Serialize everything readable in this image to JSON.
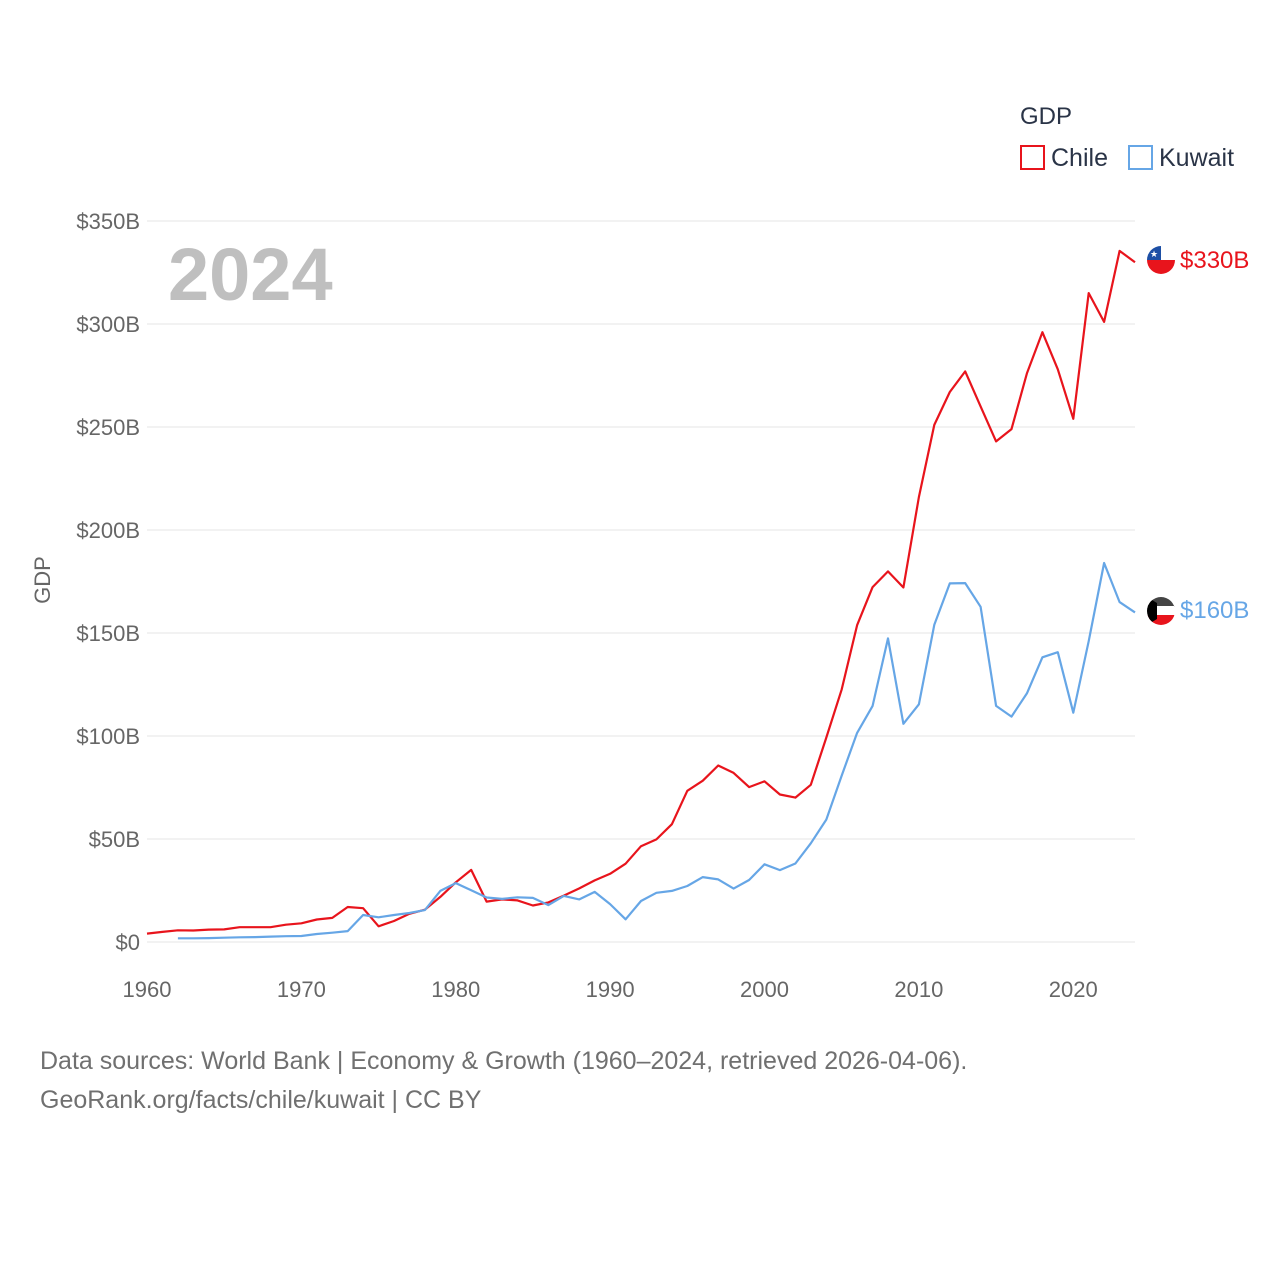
{
  "chart_data": {
    "type": "line",
    "watermark_year": "2024",
    "ylabel": "GDP",
    "xlabel": "",
    "xlim": [
      1960,
      2024
    ],
    "ylim": [
      0,
      350
    ],
    "x_ticks": [
      1960,
      1970,
      1980,
      1990,
      2000,
      2010,
      2020
    ],
    "y_ticks": [
      {
        "value": 0,
        "label": "$0"
      },
      {
        "value": 50,
        "label": "$50B"
      },
      {
        "value": 100,
        "label": "$100B"
      },
      {
        "value": 150,
        "label": "$150B"
      },
      {
        "value": 200,
        "label": "$200B"
      },
      {
        "value": 250,
        "label": "$250B"
      },
      {
        "value": 300,
        "label": "$300B"
      },
      {
        "value": 350,
        "label": "$350B"
      }
    ],
    "grid": true,
    "legend": {
      "title": "GDP",
      "position": "top-right"
    },
    "units": "billions USD",
    "series": [
      {
        "name": "Chile",
        "color": "#e8141c",
        "end_label": "$330B",
        "flag_icon": "chile-flag-icon",
        "x": [
          1960,
          1961,
          1962,
          1963,
          1964,
          1965,
          1966,
          1967,
          1968,
          1969,
          1970,
          1971,
          1972,
          1973,
          1974,
          1975,
          1976,
          1977,
          1978,
          1979,
          1980,
          1981,
          1982,
          1983,
          1984,
          1985,
          1986,
          1987,
          1988,
          1989,
          1990,
          1991,
          1992,
          1993,
          1994,
          1995,
          1996,
          1997,
          1998,
          1999,
          2000,
          2001,
          2002,
          2003,
          2004,
          2005,
          2006,
          2007,
          2008,
          2009,
          2010,
          2011,
          2012,
          2013,
          2014,
          2015,
          2016,
          2017,
          2018,
          2019,
          2020,
          2021,
          2022,
          2023,
          2024
        ],
        "values": [
          4.1,
          4.9,
          5.7,
          5.6,
          6.0,
          6.1,
          7.2,
          7.2,
          7.2,
          8.4,
          9.1,
          10.9,
          11.7,
          17.0,
          16.4,
          7.6,
          10.2,
          13.7,
          15.7,
          21.9,
          29.0,
          35.0,
          19.6,
          20.7,
          20.2,
          17.7,
          19.2,
          22.5,
          26.0,
          29.9,
          33.1,
          38.0,
          46.5,
          49.8,
          57.2,
          73.4,
          78.3,
          85.7,
          82.1,
          75.2,
          78.0,
          71.6,
          70.1,
          76.3,
          99.2,
          122.6,
          153.8,
          172.3,
          179.9,
          172.1,
          216.0,
          251.0,
          267.0,
          277.0,
          260.0,
          243.0,
          249.0,
          276.0,
          296.0,
          278.0,
          254.0,
          315.0,
          301.0,
          335.5,
          330.0
        ]
      },
      {
        "name": "Kuwait",
        "color": "#66a6e6",
        "end_label": "$160B",
        "flag_icon": "kuwait-flag-icon",
        "x": [
          1962,
          1963,
          1964,
          1965,
          1966,
          1967,
          1968,
          1969,
          1970,
          1971,
          1972,
          1973,
          1974,
          1975,
          1976,
          1977,
          1978,
          1979,
          1980,
          1981,
          1982,
          1983,
          1984,
          1985,
          1986,
          1987,
          1988,
          1989,
          1990,
          1991,
          1992,
          1993,
          1994,
          1995,
          1996,
          1997,
          1998,
          1999,
          2000,
          2001,
          2002,
          2003,
          2004,
          2005,
          2006,
          2007,
          2008,
          2009,
          2010,
          2011,
          2012,
          2013,
          2014,
          2015,
          2016,
          2017,
          2018,
          2019,
          2020,
          2021,
          2022,
          2023,
          2024
        ],
        "values": [
          1.8,
          1.8,
          1.9,
          2.1,
          2.3,
          2.4,
          2.6,
          2.8,
          2.9,
          3.9,
          4.5,
          5.3,
          13.1,
          12.0,
          13.1,
          14.1,
          15.5,
          24.8,
          28.6,
          25.1,
          21.6,
          20.9,
          21.7,
          21.4,
          17.9,
          22.4,
          20.7,
          24.3,
          18.4,
          11.0,
          19.9,
          23.9,
          24.8,
          27.2,
          31.5,
          30.4,
          25.9,
          30.1,
          37.7,
          34.9,
          38.1,
          47.9,
          59.4,
          80.8,
          101.5,
          114.6,
          147.4,
          105.9,
          115.4,
          154.0,
          174.1,
          174.2,
          162.7,
          114.6,
          109.4,
          120.7,
          138.2,
          140.7,
          111.3,
          146.0,
          184.0,
          165.0,
          160.0
        ]
      }
    ]
  },
  "footer": {
    "sources": "Data sources: World Bank | Economy & Growth (1960–2024, retrieved 2026-04-06).",
    "credit": "GeoRank.org/facts/chile/kuwait | CC BY"
  },
  "colors": {
    "chile": "#e8141c",
    "kuwait": "#66a6e6",
    "grid": "#e6e6e6",
    "tick": "#666666",
    "watermark": "#bfbfbf"
  }
}
